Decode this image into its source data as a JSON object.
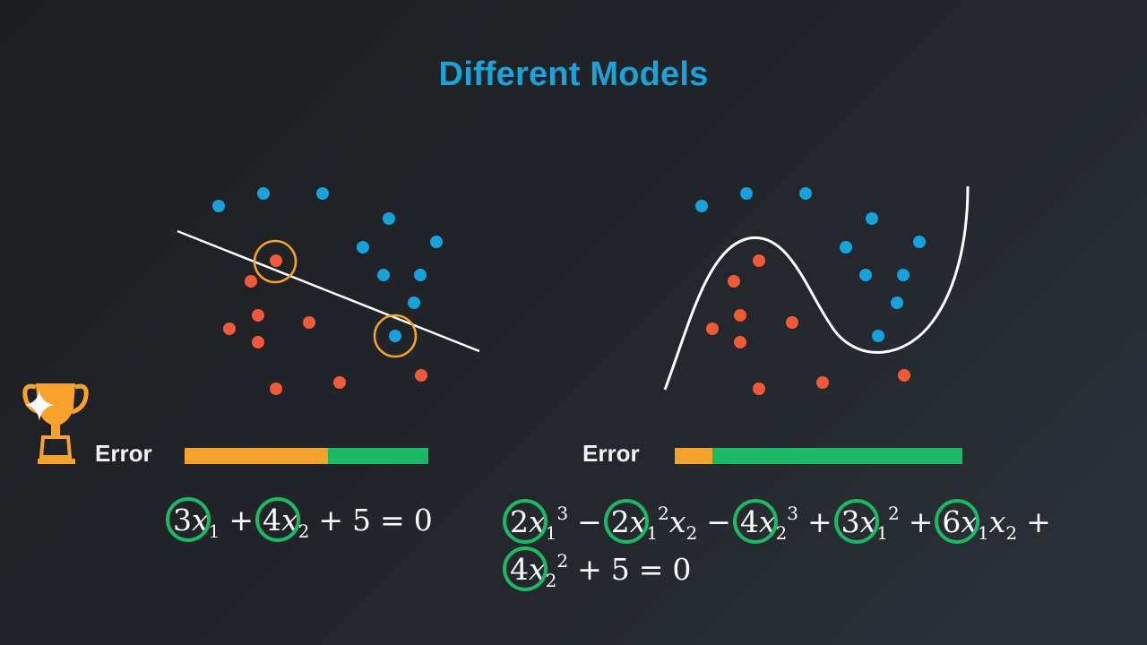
{
  "title": "Different Models",
  "colors": {
    "title": "#1ea1d6",
    "blue_point": "#17a2db",
    "red_point": "#f05a38",
    "highlight_circle": "#f8a22e",
    "coef_circle": "#1db863",
    "bar_orange": "#f8a22e",
    "bar_green": "#1db863",
    "trophy": "#f8a22e"
  },
  "left_model": {
    "error_label": "Error",
    "error_fraction": 0.59,
    "boundary": "line",
    "equation": {
      "t1_coef": "3",
      "t1_var": "x",
      "t1_sub": "1",
      "op1": "+",
      "t2_coef": "4",
      "t2_var": "x",
      "t2_sub": "2",
      "op2": "+",
      "const": "5",
      "eq": "=",
      "zero": "0"
    },
    "icon": "trophy-icon"
  },
  "right_model": {
    "error_label": "Error",
    "error_fraction": 0.13,
    "boundary": "curve",
    "equation": {
      "a_coef": "2",
      "a_var": "x",
      "a_sub": "1",
      "a_sup": "3",
      "op_a": "−",
      "b_coef": "2",
      "b_var": "x",
      "b_sub": "1",
      "b_sup": "2",
      "b_var2": "x",
      "b_sub2": "2",
      "op_b": "−",
      "c_coef": "4",
      "c_var": "x",
      "c_sub": "2",
      "c_sup": "3",
      "op_c": "+",
      "d_coef": "3",
      "d_var": "x",
      "d_sub": "1",
      "d_sup": "2",
      "op_d": "+",
      "e_coef": "6",
      "e_var": "x",
      "e_sub": "1",
      "e_var2": "x",
      "e_sub2": "2",
      "op_e": "+",
      "f_coef": "4",
      "f_var": "x",
      "f_sub": "2",
      "f_sup": "2",
      "op_f": "+",
      "const": "5",
      "eq": "=",
      "zero": "0"
    }
  }
}
